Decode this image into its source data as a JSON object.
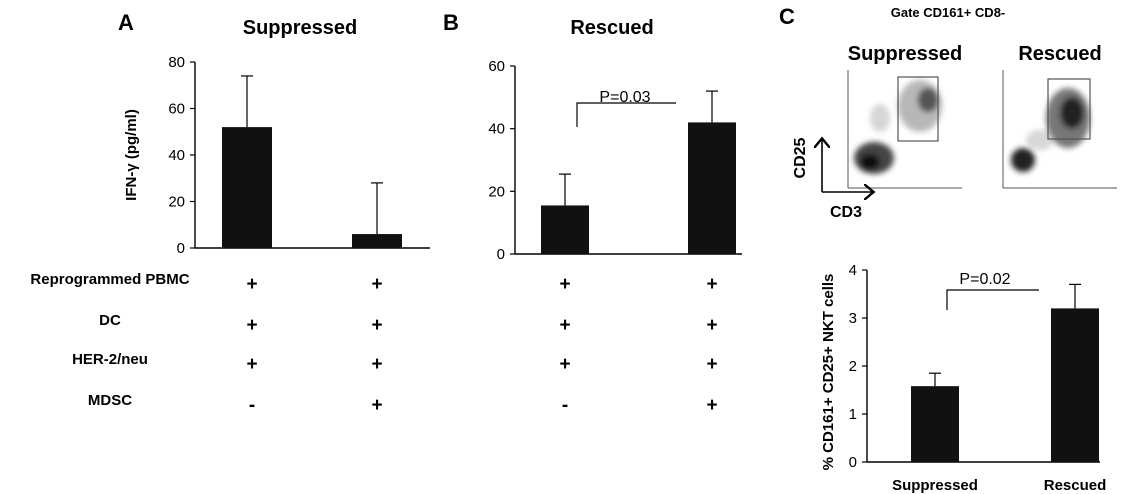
{
  "chart_data": [
    {
      "panel_letter": "A",
      "type": "bar",
      "title": "Suppressed",
      "ylabel": "IFN-γ (pg/ml)",
      "ylim": [
        0,
        80
      ],
      "yticks": [
        "0",
        "20",
        "40",
        "60",
        "80"
      ],
      "categories": [
        "",
        ""
      ],
      "values": [
        52,
        6
      ],
      "error": [
        22,
        22
      ]
    },
    {
      "panel_letter": "B",
      "type": "bar",
      "title": "Rescued",
      "ylabel": "",
      "ylim": [
        0,
        60
      ],
      "yticks": [
        "0",
        "20",
        "40",
        "60"
      ],
      "categories": [
        "",
        ""
      ],
      "values": [
        15.5,
        42
      ],
      "error": [
        10,
        10
      ],
      "annotation": "P=0.03"
    },
    {
      "panel_letter": "C",
      "type": "bar",
      "title": "",
      "ylabel": "% CD161+ CD25+ NKT cells",
      "ylim": [
        0,
        4
      ],
      "yticks": [
        "0",
        "1",
        "2",
        "3",
        "4"
      ],
      "categories": [
        "Suppressed",
        "Rescued"
      ],
      "values": [
        1.58,
        3.2
      ],
      "error": [
        0.27,
        0.5
      ],
      "annotation": "P=0.02"
    }
  ],
  "conditions_table": {
    "rows": [
      {
        "label": "Reprogrammed PBMC",
        "a": [
          "+",
          "+"
        ],
        "b": [
          "+",
          "+"
        ]
      },
      {
        "label": "DC",
        "a": [
          "+",
          "+"
        ],
        "b": [
          "+",
          "+"
        ]
      },
      {
        "label": "HER-2/neu",
        "a": [
          "+",
          "+"
        ],
        "b": [
          "+",
          "+"
        ]
      },
      {
        "label": "MDSC",
        "a": [
          "-",
          "+"
        ],
        "b": [
          "-",
          "+"
        ]
      }
    ]
  },
  "flow_panel": {
    "gate_title": "Gate CD161+ CD8-",
    "plot_titles": [
      "Suppressed",
      "Rescued"
    ],
    "y_axis": "CD25",
    "x_axis": "CD3"
  }
}
